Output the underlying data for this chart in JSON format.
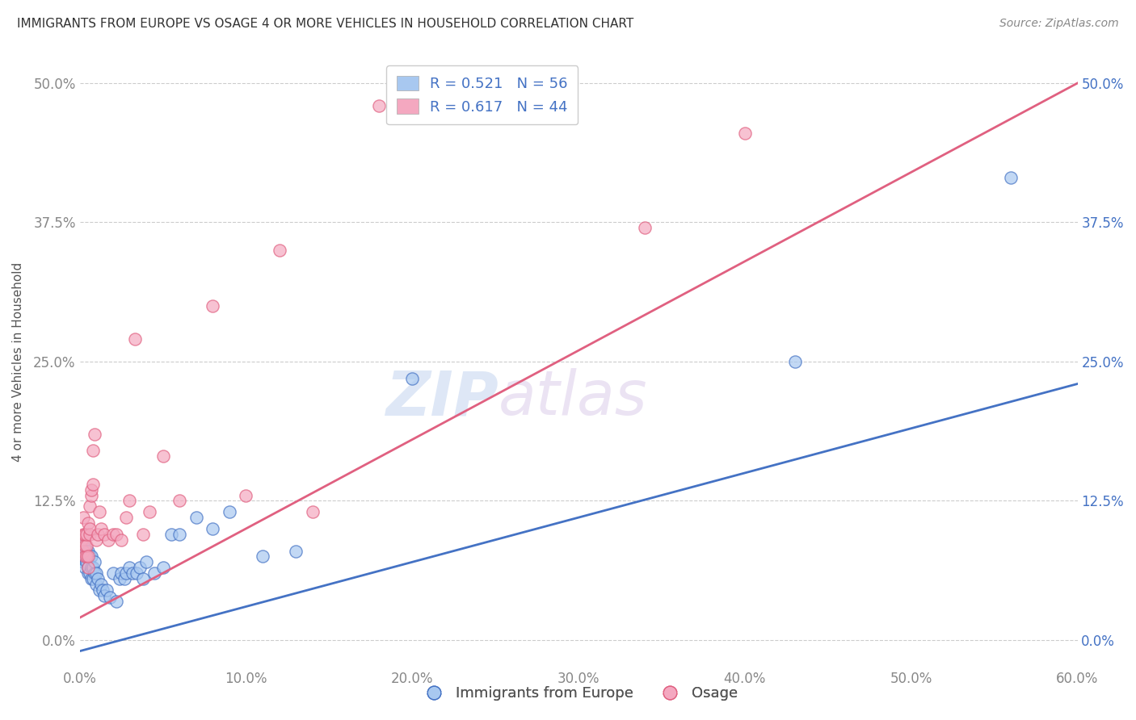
{
  "title": "IMMIGRANTS FROM EUROPE VS OSAGE 4 OR MORE VEHICLES IN HOUSEHOLD CORRELATION CHART",
  "source": "Source: ZipAtlas.com",
  "xlim": [
    0.0,
    0.6
  ],
  "ylim": [
    -0.025,
    0.525
  ],
  "blue_scatter_x": [
    0.001,
    0.001,
    0.002,
    0.002,
    0.002,
    0.003,
    0.003,
    0.003,
    0.004,
    0.004,
    0.004,
    0.005,
    0.005,
    0.005,
    0.006,
    0.006,
    0.007,
    0.007,
    0.007,
    0.008,
    0.008,
    0.009,
    0.009,
    0.01,
    0.01,
    0.011,
    0.012,
    0.013,
    0.014,
    0.015,
    0.016,
    0.018,
    0.02,
    0.022,
    0.024,
    0.025,
    0.027,
    0.028,
    0.03,
    0.032,
    0.034,
    0.036,
    0.038,
    0.04,
    0.045,
    0.05,
    0.055,
    0.06,
    0.07,
    0.08,
    0.09,
    0.11,
    0.13,
    0.2,
    0.43,
    0.56
  ],
  "blue_scatter_y": [
    0.075,
    0.08,
    0.07,
    0.075,
    0.085,
    0.065,
    0.075,
    0.08,
    0.07,
    0.075,
    0.08,
    0.06,
    0.065,
    0.08,
    0.06,
    0.075,
    0.055,
    0.065,
    0.075,
    0.055,
    0.065,
    0.06,
    0.07,
    0.05,
    0.06,
    0.055,
    0.045,
    0.05,
    0.045,
    0.04,
    0.045,
    0.038,
    0.06,
    0.035,
    0.055,
    0.06,
    0.055,
    0.06,
    0.065,
    0.06,
    0.06,
    0.065,
    0.055,
    0.07,
    0.06,
    0.065,
    0.095,
    0.095,
    0.11,
    0.1,
    0.115,
    0.075,
    0.08,
    0.235,
    0.25,
    0.415
  ],
  "pink_scatter_x": [
    0.001,
    0.002,
    0.002,
    0.002,
    0.003,
    0.003,
    0.003,
    0.004,
    0.004,
    0.004,
    0.005,
    0.005,
    0.005,
    0.006,
    0.006,
    0.006,
    0.007,
    0.007,
    0.008,
    0.008,
    0.009,
    0.01,
    0.011,
    0.012,
    0.013,
    0.015,
    0.017,
    0.02,
    0.022,
    0.025,
    0.028,
    0.03,
    0.033,
    0.038,
    0.042,
    0.05,
    0.06,
    0.08,
    0.1,
    0.12,
    0.14,
    0.18,
    0.34,
    0.4
  ],
  "pink_scatter_y": [
    0.09,
    0.08,
    0.095,
    0.11,
    0.075,
    0.085,
    0.095,
    0.075,
    0.085,
    0.095,
    0.065,
    0.075,
    0.105,
    0.095,
    0.1,
    0.12,
    0.13,
    0.135,
    0.14,
    0.17,
    0.185,
    0.09,
    0.095,
    0.115,
    0.1,
    0.095,
    0.09,
    0.095,
    0.095,
    0.09,
    0.11,
    0.125,
    0.27,
    0.095,
    0.115,
    0.165,
    0.125,
    0.3,
    0.13,
    0.35,
    0.115,
    0.48,
    0.37,
    0.455
  ],
  "blue_line_x": [
    0.0,
    0.6
  ],
  "blue_line_y": [
    -0.01,
    0.23
  ],
  "pink_line_x": [
    0.0,
    0.6
  ],
  "pink_line_y": [
    0.02,
    0.5
  ],
  "blue_color": "#a8c8f0",
  "pink_color": "#f4a8c0",
  "blue_line_color": "#4472c4",
  "pink_line_color": "#e06080",
  "watermark_zip": "ZIP",
  "watermark_atlas": "atlas",
  "grid_color": "#cccccc",
  "background_color": "#ffffff",
  "legend_blue_label": "R = 0.521   N = 56",
  "legend_pink_label": "R = 0.617   N = 44",
  "legend_blue_patch": "#a8c8f0",
  "legend_pink_patch": "#f4a8c0",
  "bottom_legend_blue": "Immigrants from Europe",
  "bottom_legend_pink": "Osage"
}
